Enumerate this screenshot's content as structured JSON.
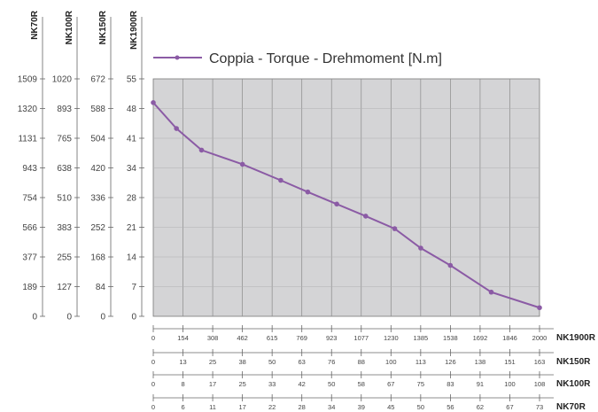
{
  "chart_data": {
    "type": "line",
    "legend": "Coppia - Torque - Drehmoment [N.m]",
    "legend_position": "top",
    "grid": true,
    "plot_background": "#d4d4d6",
    "line_color": "#8b5ba5",
    "y_axes": [
      {
        "name": "NK70R",
        "ticks": [
          "1509",
          "1320",
          "1131",
          "943",
          "754",
          "566",
          "377",
          "189",
          "0"
        ]
      },
      {
        "name": "NK100R",
        "ticks": [
          "1020",
          "893",
          "765",
          "638",
          "510",
          "383",
          "255",
          "127",
          "0"
        ]
      },
      {
        "name": "NK150R",
        "ticks": [
          "672",
          "588",
          "504",
          "420",
          "336",
          "252",
          "168",
          "84",
          "0"
        ]
      },
      {
        "name": "NK1900R",
        "ticks": [
          "55",
          "48",
          "41",
          "34",
          "28",
          "21",
          "14",
          "7",
          "0"
        ]
      }
    ],
    "x_axes": [
      {
        "name": "NK1900R",
        "ticks": [
          "0",
          "154",
          "308",
          "462",
          "615",
          "769",
          "923",
          "1077",
          "1230",
          "1385",
          "1538",
          "1692",
          "1846",
          "2000"
        ]
      },
      {
        "name": "NK150R",
        "ticks": [
          "0",
          "13",
          "25",
          "38",
          "50",
          "63",
          "76",
          "88",
          "100",
          "113",
          "126",
          "138",
          "151",
          "163"
        ]
      },
      {
        "name": "NK100R",
        "ticks": [
          "0",
          "8",
          "17",
          "25",
          "33",
          "42",
          "50",
          "58",
          "67",
          "75",
          "83",
          "91",
          "100",
          "108"
        ]
      },
      {
        "name": "NK70R",
        "ticks": [
          "0",
          "6",
          "11",
          "17",
          "22",
          "28",
          "34",
          "39",
          "45",
          "50",
          "56",
          "62",
          "67",
          "73"
        ]
      }
    ],
    "primary_x": "NK1900R",
    "primary_y": "NK1900R",
    "xlim": [
      0,
      2000
    ],
    "ylim": [
      0,
      55
    ],
    "series": [
      {
        "x": [
          0,
          120,
          250,
          462,
          660,
          800,
          950,
          1100,
          1250,
          1385,
          1538,
          1750,
          2000
        ],
        "y": [
          49.5,
          43.5,
          38.5,
          35.2,
          31.5,
          28.8,
          26,
          23.2,
          20.3,
          15.8,
          11.8,
          5.6,
          2
        ]
      }
    ]
  }
}
